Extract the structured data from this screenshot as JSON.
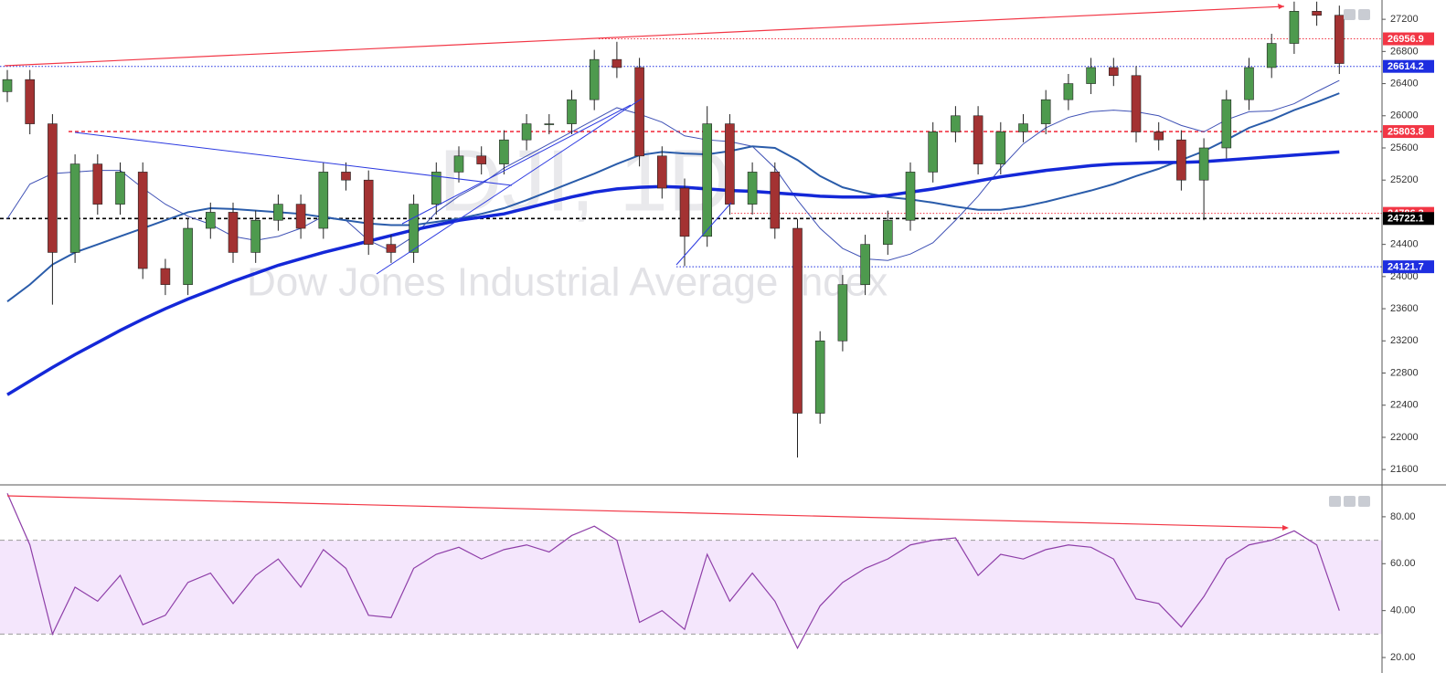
{
  "chart_data": [
    {
      "type": "candlestick",
      "watermark": "DJI, 1D",
      "subtitle": "Dow Jones Industrial Average Index",
      "up_color": "#4e9a4e",
      "down_color": "#a33232",
      "open": [
        26300,
        26450,
        25900,
        24300,
        25400,
        24900,
        25300,
        24100,
        23900,
        24600,
        24800,
        24300,
        24700,
        24900,
        24600,
        25300,
        25200,
        24400,
        24300,
        24900,
        25300,
        25500,
        25400,
        25700,
        25900,
        25900,
        26200,
        26700,
        26600,
        25500,
        25100,
        24500,
        25900,
        24900,
        25300,
        24600,
        22300,
        23200,
        23900,
        24400,
        24700,
        25300,
        25800,
        26000,
        25400,
        25800,
        25900,
        26200,
        26400,
        26600,
        26500,
        25800,
        25700,
        25200,
        25600,
        26200,
        26600,
        26900,
        27300,
        27250
      ],
      "high": [
        26570,
        26570,
        26020,
        25520,
        25520,
        25420,
        25420,
        24220,
        24720,
        24920,
        24920,
        24820,
        25020,
        25020,
        25420,
        25420,
        25320,
        24520,
        25020,
        25420,
        25620,
        25620,
        25820,
        26020,
        26020,
        26320,
        26820,
        26920,
        26720,
        25620,
        25220,
        26120,
        26020,
        25420,
        25420,
        24720,
        23320,
        24020,
        24520,
        24820,
        25420,
        25920,
        26120,
        26120,
        25920,
        26020,
        26320,
        26520,
        26720,
        26720,
        26620,
        25920,
        25820,
        25720,
        26320,
        26720,
        27020,
        27420,
        27420,
        27370
      ],
      "low": [
        26170,
        25770,
        23650,
        24170,
        24770,
        24770,
        23970,
        23770,
        23770,
        24470,
        24170,
        24170,
        24570,
        24470,
        24470,
        25070,
        24270,
        24170,
        24170,
        24770,
        25170,
        25270,
        25270,
        25570,
        25770,
        25770,
        26070,
        26470,
        25370,
        24970,
        24130,
        24370,
        24770,
        24770,
        24470,
        21750,
        22170,
        23070,
        23770,
        24270,
        24570,
        25170,
        25670,
        25270,
        25270,
        25670,
        25770,
        26070,
        26270,
        26370,
        25670,
        25570,
        25070,
        24700,
        25470,
        26070,
        26470,
        26770,
        27120,
        26520
      ],
      "close": [
        26450,
        25900,
        24300,
        25400,
        24900,
        25300,
        24100,
        23900,
        24600,
        24800,
        24300,
        24700,
        24900,
        24600,
        25300,
        25200,
        24400,
        24300,
        24900,
        25300,
        25500,
        25400,
        25700,
        25900,
        25900,
        26200,
        26700,
        26600,
        25500,
        25100,
        24500,
        25900,
        24900,
        25300,
        24600,
        22300,
        23200,
        23900,
        24400,
        24700,
        25300,
        25800,
        26000,
        25400,
        25800,
        25900,
        26200,
        26400,
        26600,
        26500,
        25800,
        25700,
        25200,
        25600,
        26200,
        26600,
        26900,
        27300,
        27250,
        26650
      ],
      "moving_averages": [
        {
          "color": "#3f51b5",
          "width": 1,
          "values": [
            24720,
            25150,
            25280,
            25300,
            25320,
            25320,
            25100,
            24900,
            24750,
            24650,
            24500,
            24450,
            24500,
            24600,
            24750,
            24700,
            24450,
            24320,
            24500,
            24800,
            25000,
            25150,
            25350,
            25500,
            25650,
            25800,
            25950,
            26100,
            26020,
            25920,
            25750,
            25700,
            25680,
            25620,
            25350,
            24950,
            24600,
            24350,
            24220,
            24200,
            24280,
            24420,
            24700,
            25000,
            25350,
            25650,
            25850,
            25980,
            26050,
            26070,
            26050,
            26000,
            25880,
            25800,
            25950,
            26050,
            26060,
            26150,
            26300,
            26440
          ]
        },
        {
          "color": "#2a5caa",
          "width": 2,
          "values": [
            23690,
            23900,
            24150,
            24300,
            24400,
            24500,
            24600,
            24700,
            24800,
            24850,
            24840,
            24820,
            24800,
            24780,
            24740,
            24700,
            24660,
            24640,
            24640,
            24680,
            24720,
            24780,
            24850,
            24950,
            25060,
            25170,
            25280,
            25400,
            25510,
            25550,
            25530,
            25520,
            25560,
            25620,
            25600,
            25450,
            25250,
            25110,
            25040,
            24990,
            24960,
            24920,
            24870,
            24830,
            24830,
            24870,
            24930,
            25000,
            25070,
            25150,
            25250,
            25340,
            25450,
            25560,
            25700,
            25850,
            25950,
            26070,
            26170,
            26280
          ]
        },
        {
          "color": "#1428d8",
          "width": 3.5,
          "values": [
            22530,
            22700,
            22870,
            23030,
            23180,
            23330,
            23470,
            23600,
            23720,
            23830,
            23940,
            24040,
            24140,
            24220,
            24300,
            24370,
            24440,
            24510,
            24580,
            24640,
            24700,
            24740,
            24780,
            24850,
            24920,
            24990,
            25050,
            25090,
            25110,
            25120,
            25110,
            25090,
            25070,
            25060,
            25040,
            25020,
            25000,
            24990,
            24990,
            25010,
            25050,
            25090,
            25140,
            25190,
            25240,
            25280,
            25320,
            25350,
            25380,
            25400,
            25410,
            25420,
            25420,
            25430,
            25450,
            25470,
            25490,
            25510,
            25530,
            25550
          ]
        }
      ],
      "levels": [
        {
          "value": 26956.9,
          "color": "#f23645",
          "style": "dotted"
        },
        {
          "value": 26614.2,
          "color": "#1e2ee0",
          "style": "dotted"
        },
        {
          "value": 25803.8,
          "color": "#f23645",
          "style": "dashed"
        },
        {
          "value": 24786.3,
          "color": "#f23645",
          "style": "dotted"
        },
        {
          "value": 24722.1,
          "color": "#000000",
          "style": "dashed"
        },
        {
          "value": 24121.7,
          "color": "#1e2ee0",
          "style": "dotted"
        }
      ],
      "ylim": [
        21420,
        27440
      ],
      "yticks": [
        21600,
        22000,
        22400,
        22800,
        23200,
        23600,
        24000,
        24400,
        25200,
        25600,
        26000,
        26400,
        26800,
        27200
      ]
    },
    {
      "type": "line",
      "color": "#8e3ea8",
      "band_color": "#f4e6fc",
      "bands": [
        30,
        70
      ],
      "values": [
        90,
        68,
        30,
        50,
        44,
        55,
        34,
        38,
        52,
        56,
        43,
        55,
        62,
        50,
        66,
        58,
        38,
        37,
        58,
        64,
        67,
        62,
        66,
        68,
        65,
        72,
        76,
        70,
        35,
        40,
        32,
        64,
        44,
        56,
        44,
        24,
        42,
        52,
        58,
        62,
        68,
        70,
        71,
        55,
        64,
        62,
        66,
        68,
        67,
        62,
        45,
        43,
        33,
        46,
        62,
        68,
        70,
        74,
        68,
        40
      ],
      "ylim": [
        13.4,
        93.2
      ],
      "yticks": [
        {
          "value": 20,
          "label": "20.00"
        },
        {
          "value": 40,
          "label": "40.00"
        },
        {
          "value": 60,
          "label": "60.00"
        },
        {
          "value": 80,
          "label": "80.00"
        }
      ]
    }
  ]
}
